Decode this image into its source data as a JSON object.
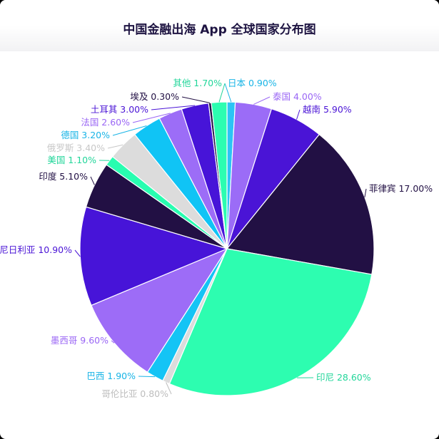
{
  "chart_data": {
    "type": "pie",
    "title": "中国金融出海 App 全球国家分布图",
    "categories": [
      "日本",
      "泰国",
      "越南",
      "菲律宾",
      "印尼",
      "哥伦比亚",
      "巴西",
      "墨西哥",
      "尼日利亚",
      "印度",
      "美国",
      "俄罗斯",
      "德国",
      "法国",
      "土耳其",
      "埃及",
      "其他"
    ],
    "values": [
      0.9,
      4.0,
      5.9,
      17.0,
      28.6,
      0.8,
      1.9,
      9.6,
      10.9,
      5.1,
      1.1,
      3.4,
      3.2,
      2.6,
      3.0,
      0.3,
      1.7
    ],
    "value_labels": [
      "0.90%",
      "4.00%",
      "5.90%",
      "17.00%",
      "28.60%",
      "0.80%",
      "1.90%",
      "9.60%",
      "10.90%",
      "5.10%",
      "1.10%",
      "3.40%",
      "3.20%",
      "2.60%",
      "3.00%",
      "0.30%",
      "1.70%"
    ],
    "colors": [
      "#2cc4f5",
      "#9b6cf7",
      "#4a14d6",
      "#221044",
      "#2dfdb0",
      "#dcdcdc",
      "#14c4f5",
      "#9d6cf7",
      "#4714d8",
      "#221044",
      "#28fdb0",
      "#dcdcdc",
      "#10c4f5",
      "#9c6df7",
      "#4714d8",
      "#221044",
      "#2cfdb0"
    ],
    "label_colors": [
      "#18b4e6",
      "#9a66f5",
      "#4a14d6",
      "#221044",
      "#22d69a",
      "#bdbdbd",
      "#18b4e6",
      "#9a66f5",
      "#4a14d6",
      "#221044",
      "#22d69a",
      "#c8c8c8",
      "#18b4e6",
      "#9a66f5",
      "#4a14d6",
      "#221044",
      "#22d69a"
    ]
  }
}
